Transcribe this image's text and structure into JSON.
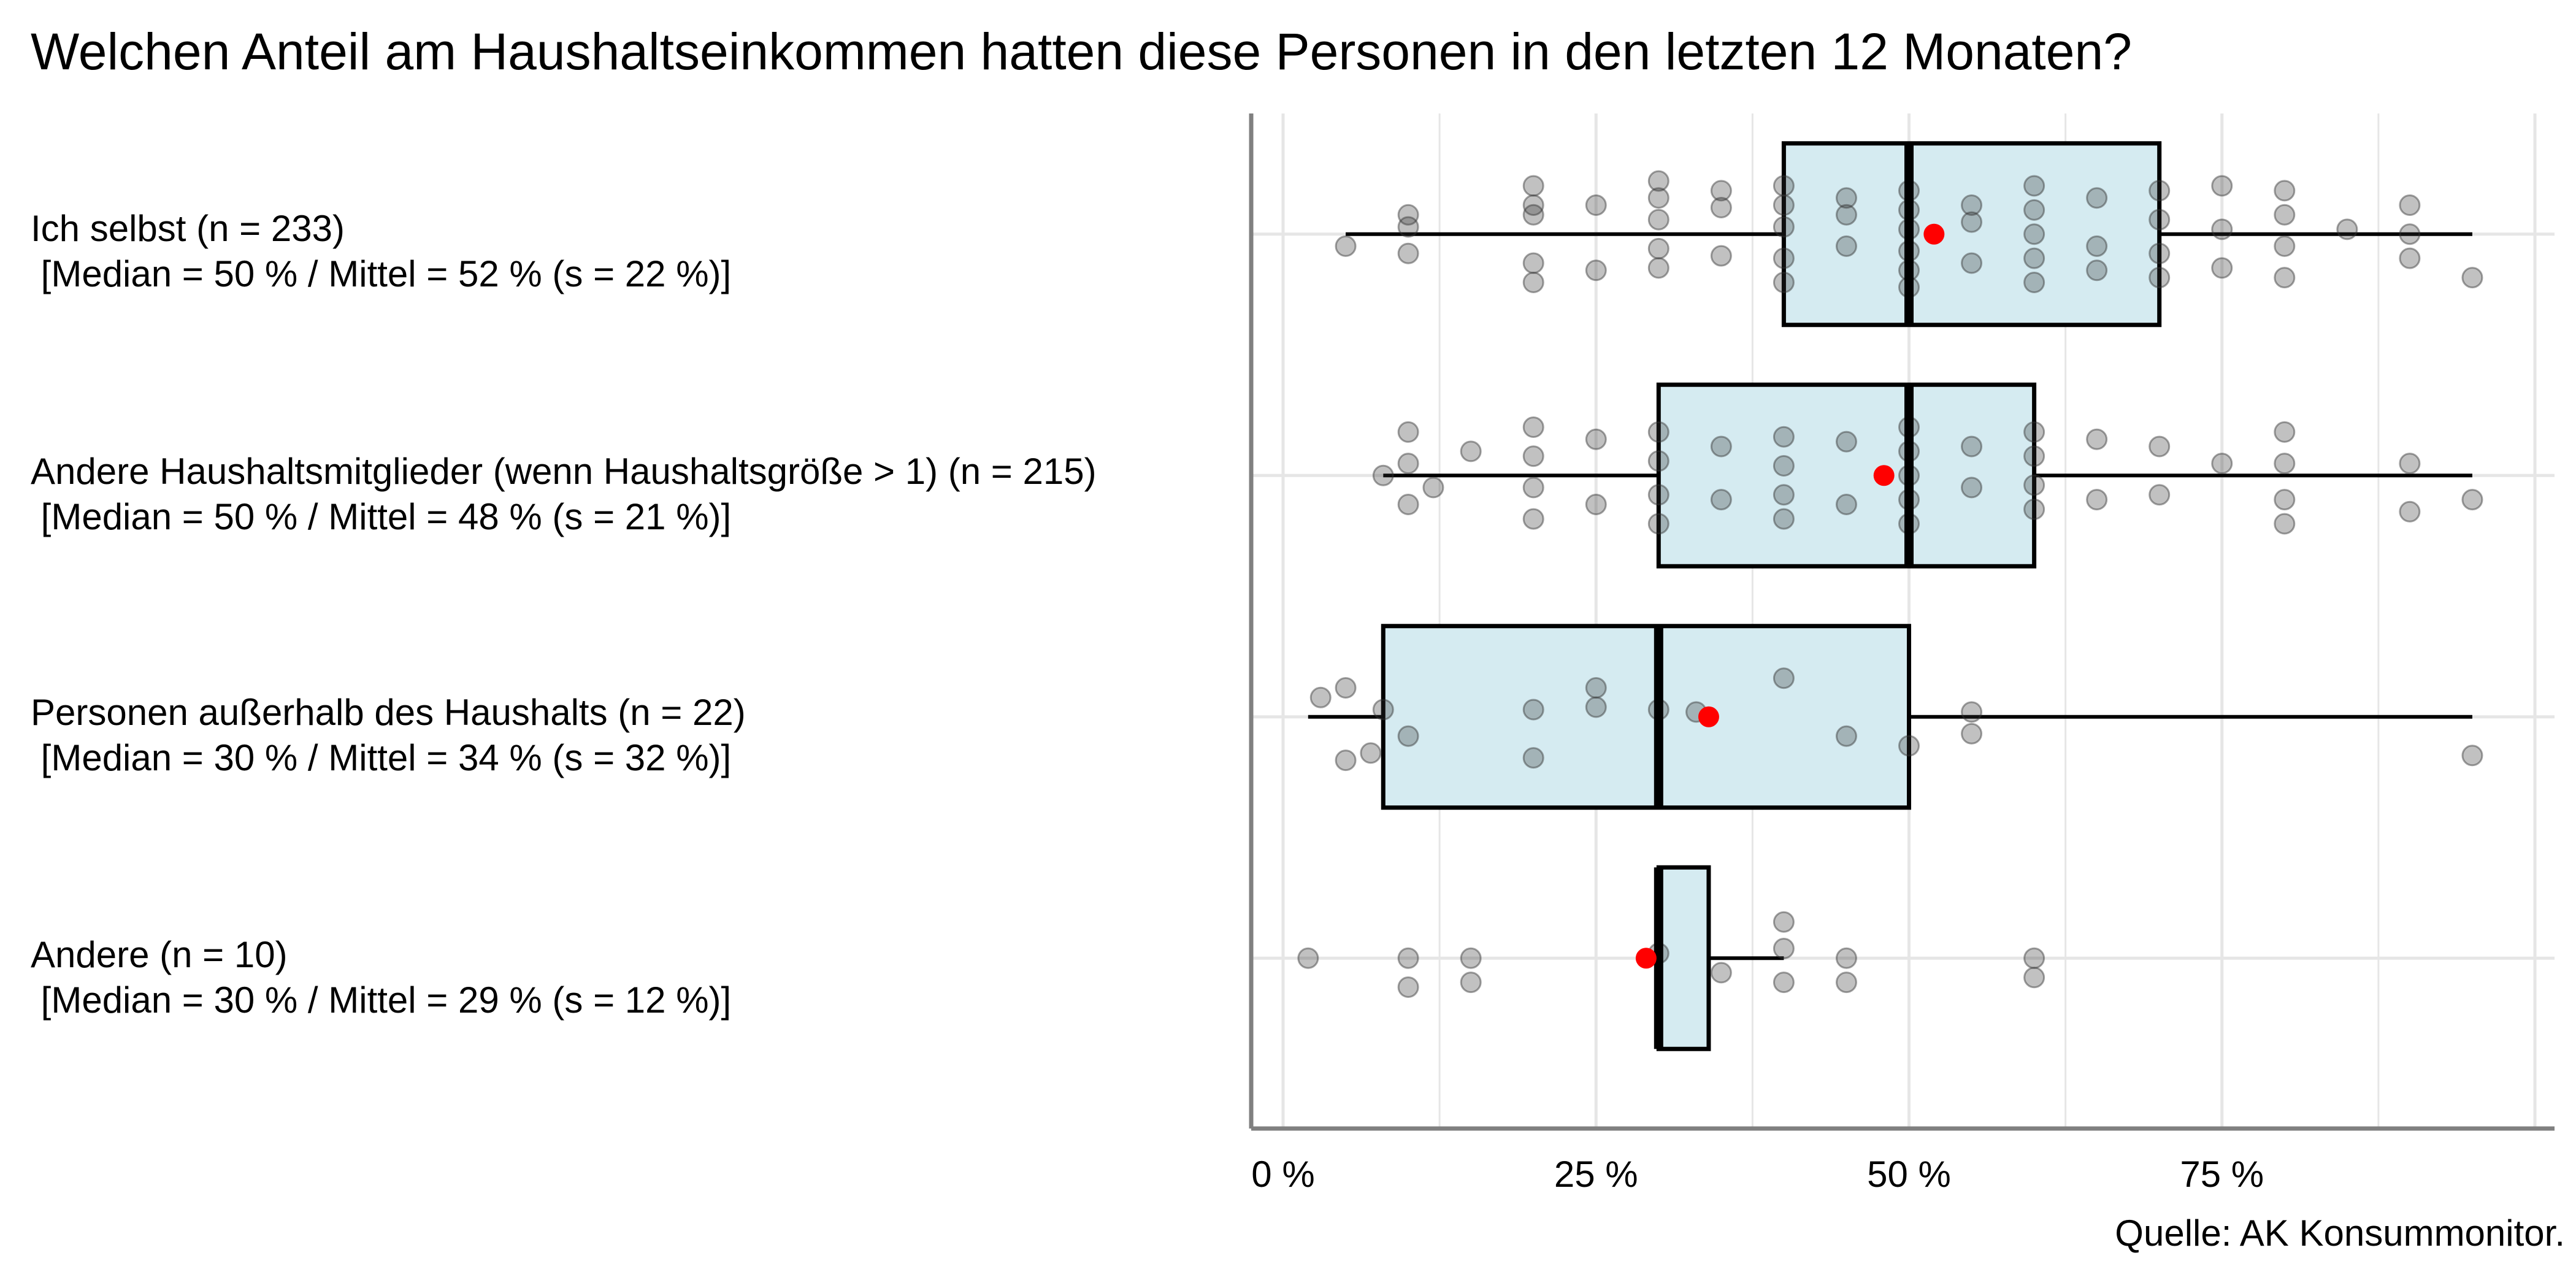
{
  "chart_data": {
    "type": "boxplot",
    "title": "Welchen Anteil am Haushaltseinkommen hatten diese Personen in den letzten 12 Monaten?",
    "caption": "Quelle: AK Konsummonitor.",
    "xlim": [
      0,
      100
    ],
    "x_ticks": [
      0,
      25,
      50,
      75
    ],
    "x_tick_labels": [
      "0 %",
      "25 %",
      "50 %",
      "75 %"
    ],
    "grid": true,
    "colors": {
      "box_fill": "#d5ebf1",
      "mean_point": "#ff0000",
      "jitter_point": "#333333",
      "grid": "#e6e6e6",
      "axis": "#808080"
    },
    "categories": [
      {
        "label_line1": "Ich selbst (n = 233)",
        "label_line2": " [Median = 50 % / Mittel = 52 % (s = 22 %)]",
        "n": 233,
        "whisker_low": 5,
        "q1": 40,
        "median": 50,
        "q3": 70,
        "whisker_high": 95,
        "mean": 52,
        "sd": 22
      },
      {
        "label_line1": "Andere Haushaltsmitglieder (wenn Haushaltsgröße > 1) (n = 215)",
        "label_line2": " [Median = 50 % / Mittel = 48 % (s = 21 %)]",
        "n": 215,
        "whisker_low": 8,
        "q1": 30,
        "median": 50,
        "q3": 60,
        "whisker_high": 95,
        "mean": 48,
        "sd": 21
      },
      {
        "label_line1": "Personen außerhalb des Haushalts (n = 22)",
        "label_line2": " [Median = 30 % / Mittel = 34 % (s = 32 %)]",
        "n": 22,
        "whisker_low": 2,
        "q1": 8,
        "median": 30,
        "q3": 50,
        "whisker_high": 95,
        "mean": 34,
        "sd": 32
      },
      {
        "label_line1": "Andere (n = 10)",
        "label_line2": " [Median = 30 % / Mittel = 29 % (s = 12 %)]",
        "n": 10,
        "whisker_low": 30,
        "q1": 30,
        "median": 30,
        "q3": 34,
        "whisker_high": 40,
        "mean": 29,
        "sd": 12
      }
    ],
    "jitter_points": [
      [
        [
          5,
          1.08
        ],
        [
          5,
          -0.05
        ],
        [
          10,
          0.03
        ],
        [
          10,
          0.08
        ],
        [
          10,
          -0.08
        ],
        [
          20,
          0.12
        ],
        [
          20,
          0.08
        ],
        [
          20,
          -0.12
        ],
        [
          20,
          -0.2
        ],
        [
          20,
          0.2
        ],
        [
          25,
          0.12
        ],
        [
          25,
          -0.15
        ],
        [
          30,
          0.15
        ],
        [
          30,
          0.06
        ],
        [
          30,
          -0.06
        ],
        [
          30,
          -0.14
        ],
        [
          30,
          0.22
        ],
        [
          35,
          0.11
        ],
        [
          35,
          -0.09
        ],
        [
          35,
          0.18
        ],
        [
          40,
          0.12
        ],
        [
          40,
          0.03
        ],
        [
          40,
          -0.1
        ],
        [
          40,
          -0.2
        ],
        [
          40,
          0.2
        ],
        [
          45,
          0.15
        ],
        [
          45,
          -0.05
        ],
        [
          45,
          0.08
        ],
        [
          50,
          0.18
        ],
        [
          50,
          0.1
        ],
        [
          50,
          0.02
        ],
        [
          50,
          -0.07
        ],
        [
          50,
          -0.15
        ],
        [
          50,
          -0.22
        ],
        [
          55,
          0.12
        ],
        [
          55,
          -0.12
        ],
        [
          55,
          0.05
        ],
        [
          60,
          0.2
        ],
        [
          60,
          0.1
        ],
        [
          60,
          0.0
        ],
        [
          60,
          -0.1
        ],
        [
          60,
          -0.2
        ],
        [
          65,
          0.15
        ],
        [
          65,
          -0.05
        ],
        [
          65,
          -0.15
        ],
        [
          70,
          0.18
        ],
        [
          70,
          0.06
        ],
        [
          70,
          -0.08
        ],
        [
          70,
          -0.18
        ],
        [
          75,
          0.2
        ],
        [
          75,
          0.02
        ],
        [
          75,
          -0.14
        ],
        [
          80,
          0.18
        ],
        [
          80,
          0.08
        ],
        [
          80,
          -0.05
        ],
        [
          80,
          -0.18
        ],
        [
          85,
          0.02
        ],
        [
          90,
          0.12
        ],
        [
          90,
          0.0
        ],
        [
          90,
          -0.1
        ],
        [
          95,
          -0.18
        ]
      ],
      [
        [
          8,
          0.0
        ],
        [
          10,
          0.18
        ],
        [
          10,
          0.05
        ],
        [
          10,
          -0.12
        ],
        [
          12,
          -0.05
        ],
        [
          15,
          0.1
        ],
        [
          20,
          0.2
        ],
        [
          20,
          0.08
        ],
        [
          20,
          -0.05
        ],
        [
          20,
          -0.18
        ],
        [
          25,
          0.15
        ],
        [
          25,
          -0.12
        ],
        [
          30,
          0.18
        ],
        [
          30,
          0.06
        ],
        [
          30,
          -0.08
        ],
        [
          30,
          -0.2
        ],
        [
          35,
          0.12
        ],
        [
          35,
          -0.1
        ],
        [
          40,
          0.16
        ],
        [
          40,
          0.04
        ],
        [
          40,
          -0.08
        ],
        [
          40,
          -0.18
        ],
        [
          45,
          0.14
        ],
        [
          45,
          -0.12
        ],
        [
          50,
          0.2
        ],
        [
          50,
          0.1
        ],
        [
          50,
          0.0
        ],
        [
          50,
          -0.1
        ],
        [
          50,
          -0.2
        ],
        [
          55,
          0.12
        ],
        [
          55,
          -0.05
        ],
        [
          60,
          0.18
        ],
        [
          60,
          0.08
        ],
        [
          60,
          -0.04
        ],
        [
          60,
          -0.14
        ],
        [
          65,
          0.15
        ],
        [
          65,
          -0.1
        ],
        [
          70,
          0.12
        ],
        [
          70,
          -0.08
        ],
        [
          75,
          0.05
        ],
        [
          80,
          0.18
        ],
        [
          80,
          0.05
        ],
        [
          80,
          -0.1
        ],
        [
          80,
          -0.2
        ],
        [
          90,
          0.05
        ],
        [
          90,
          -0.15
        ],
        [
          95,
          -0.1
        ]
      ],
      [
        [
          3,
          0.08
        ],
        [
          5,
          0.12
        ],
        [
          8,
          0.03
        ],
        [
          10,
          -0.08
        ],
        [
          5,
          -0.18
        ],
        [
          7,
          -0.15
        ],
        [
          20,
          0.03
        ],
        [
          20,
          -0.17
        ],
        [
          25,
          0.12
        ],
        [
          25,
          0.04
        ],
        [
          30,
          0.03
        ],
        [
          33,
          0.02
        ],
        [
          40,
          0.16
        ],
        [
          45,
          -0.08
        ],
        [
          50,
          -0.12
        ],
        [
          55,
          0.02
        ],
        [
          55,
          -0.07
        ],
        [
          95,
          -0.16
        ]
      ],
      [
        [
          2,
          0.0
        ],
        [
          10,
          0.0
        ],
        [
          15,
          0.0
        ],
        [
          30,
          0.02
        ],
        [
          35,
          -0.06
        ],
        [
          40,
          0.15
        ],
        [
          40,
          0.04
        ],
        [
          45,
          0.0
        ],
        [
          45,
          -0.1
        ],
        [
          60,
          0.0
        ],
        [
          60,
          -0.08
        ],
        [
          10,
          -0.12
        ],
        [
          15,
          -0.1
        ],
        [
          40,
          -0.1
        ]
      ]
    ]
  }
}
